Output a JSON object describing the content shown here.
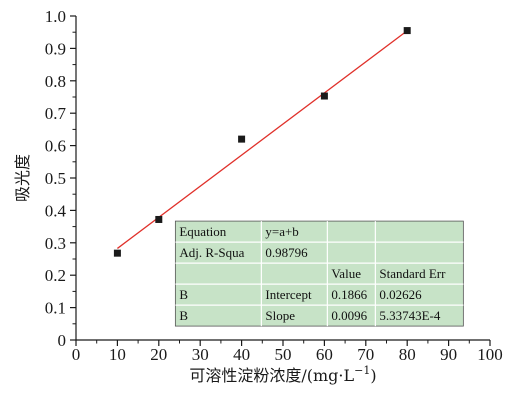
{
  "chart_data": {
    "type": "scatter",
    "title": "",
    "xlabel": "可溶性淀粉浓度/(mg·L",
    "xlabel_sup": "−1",
    "xlabel_end": ")",
    "ylabel": "吸光度",
    "xlim": [
      0,
      100
    ],
    "ylim": [
      0,
      1.0
    ],
    "x_ticks": [
      "0",
      "10",
      "20",
      "30",
      "40",
      "50",
      "60",
      "70",
      "80",
      "90",
      "100"
    ],
    "y_ticks": [
      "0",
      "0.1",
      "0.2",
      "0.3",
      "0.4",
      "0.5",
      "0.6",
      "0.7",
      "0.8",
      "0.9",
      "1.0"
    ],
    "grid": false,
    "series": [
      {
        "x": [
          10,
          20,
          40,
          60,
          80
        ],
        "y": [
          0.268,
          0.372,
          0.62,
          0.753,
          0.955
        ],
        "color": "#1a1a1a",
        "marker": "square"
      }
    ],
    "fit_line": {
      "intercept": 0.1866,
      "slope": 0.0096,
      "x_range": [
        10,
        80
      ],
      "color": "#e0302a"
    },
    "stats_table": {
      "background": "#c7e3c7",
      "rows": [
        [
          "Equation",
          "y=a+b",
          "",
          ""
        ],
        [
          "Adj. R-Squa",
          "0.98796",
          "",
          ""
        ],
        [
          "",
          "",
          "Value",
          "Standard Err"
        ],
        [
          "B",
          "Intercept",
          "0.1866",
          "0.02626"
        ],
        [
          "B",
          "Slope",
          "0.0096",
          "5.33743E-4"
        ]
      ]
    }
  }
}
